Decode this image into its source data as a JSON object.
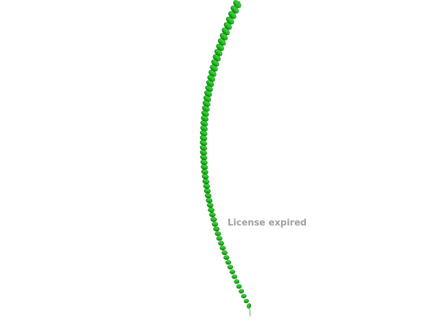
{
  "viewer": {
    "watermark_text": "License expired"
  },
  "structure": {
    "representation": "cartoon-alpha-helix",
    "colors": {
      "background": "#ffffff",
      "helix_light": "#4cdc4c",
      "helix_mid": "#22c322",
      "helix_dark": "#0f7a0f",
      "watermark": "#a0a0a0"
    }
  }
}
